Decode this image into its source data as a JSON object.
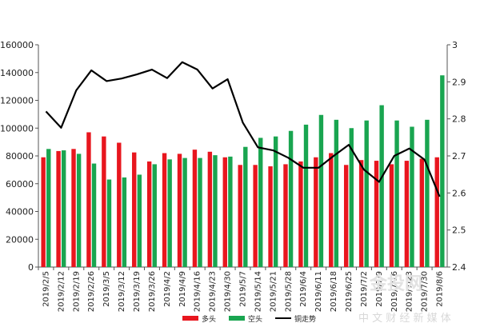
{
  "chart_data": {
    "type": "bar",
    "categories": [
      "2019/2/5",
      "2019/2/12",
      "2019/2/19",
      "2019/2/26",
      "2019/3/5",
      "2019/3/12",
      "2019/3/19",
      "2019/3/26",
      "2019/4/2",
      "2019/4/9",
      "2019/4/16",
      "2019/4/23",
      "2019/4/30",
      "2019/5/7",
      "2019/5/14",
      "2019/5/21",
      "2019/5/28",
      "2019/6/4",
      "2019/6/11",
      "2019/6/18",
      "2019/6/25",
      "2019/7/2",
      "2019/7/9",
      "2019/7/16",
      "2019/7/23",
      "2019/7/30",
      "2019/8/6"
    ],
    "series": [
      {
        "name": "多头",
        "type": "bar",
        "axis": "left",
        "color": "#e8161e",
        "values": [
          79000,
          83500,
          85000,
          97000,
          94000,
          89500,
          82500,
          76000,
          82000,
          81500,
          84500,
          83000,
          79000,
          73500,
          73500,
          72500,
          74000,
          76000,
          79000,
          82000,
          73500,
          77000,
          76500,
          74000,
          76500,
          78000,
          79000
        ]
      },
      {
        "name": "空头",
        "type": "bar",
        "axis": "left",
        "color": "#19a550",
        "values": [
          85000,
          84000,
          81500,
          74500,
          63000,
          64500,
          66500,
          74000,
          77500,
          78500,
          78500,
          80500,
          79500,
          86500,
          93000,
          94000,
          98000,
          102500,
          109500,
          106000,
          100000,
          105500,
          116500,
          105500,
          101000,
          106000,
          138000
        ]
      },
      {
        "name": "铜走势",
        "type": "line",
        "axis": "right",
        "color": "#000000",
        "values": [
          2.82,
          2.776,
          2.877,
          2.931,
          2.902,
          2.909,
          2.92,
          2.933,
          2.91,
          2.953,
          2.933,
          2.882,
          2.907,
          2.79,
          2.723,
          2.715,
          2.695,
          2.668,
          2.668,
          2.7,
          2.73,
          2.663,
          2.63,
          2.7,
          2.72,
          2.69,
          2.59
        ]
      }
    ],
    "y_left": {
      "min": 0,
      "max": 160000,
      "step": 20000
    },
    "y_right": {
      "min": 2.4,
      "max": 3,
      "step": 0.1
    },
    "ytick_labels_left": [
      "0",
      "20000",
      "40000",
      "60000",
      "80000",
      "100000",
      "120000",
      "140000",
      "160000"
    ],
    "ytick_labels_right": [
      "2.4",
      "2.5",
      "2.6",
      "2.7",
      "2.8",
      "2.9",
      "3"
    ],
    "legend_position": "bottom-center",
    "grid": false,
    "title": "",
    "xlabel": "",
    "ylabel": ""
  },
  "watermark": {
    "logo_text": "金投网",
    "tagline": "中 文 财 经 新 媒 体"
  }
}
